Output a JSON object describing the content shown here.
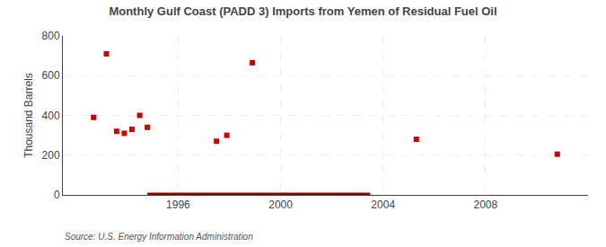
{
  "chart_data": {
    "type": "scatter",
    "title": "Monthly Gulf Coast (PADD 3) Imports from Yemen of Residual Fuel Oil",
    "ylabel": "Thousand Barrels",
    "source": "Source: U.S. Energy Information Administration",
    "series": [
      {
        "type": "scatter",
        "color": "#cc0000",
        "marker": "square",
        "x": [
          1992.7,
          1993.2,
          1993.6,
          1993.9,
          1994.2,
          1994.5,
          1994.8,
          1997.5,
          1997.9,
          1998.9,
          2005.3,
          2010.8
        ],
        "values": [
          390,
          710,
          320,
          310,
          330,
          400,
          340,
          270,
          300,
          665,
          280,
          205
        ]
      },
      {
        "type": "line",
        "color": "#8b0000",
        "line_style": "solid",
        "x": [
          1994.8,
          2003.5
        ],
        "values": [
          0,
          0
        ]
      }
    ],
    "xlim": [
      1991.5,
      2012.0
    ],
    "ylim": [
      0,
      800
    ],
    "xticks": [
      1996,
      2000,
      2004,
      2008
    ],
    "yticks": [
      0,
      200,
      400,
      600,
      800
    ],
    "grid": true
  }
}
